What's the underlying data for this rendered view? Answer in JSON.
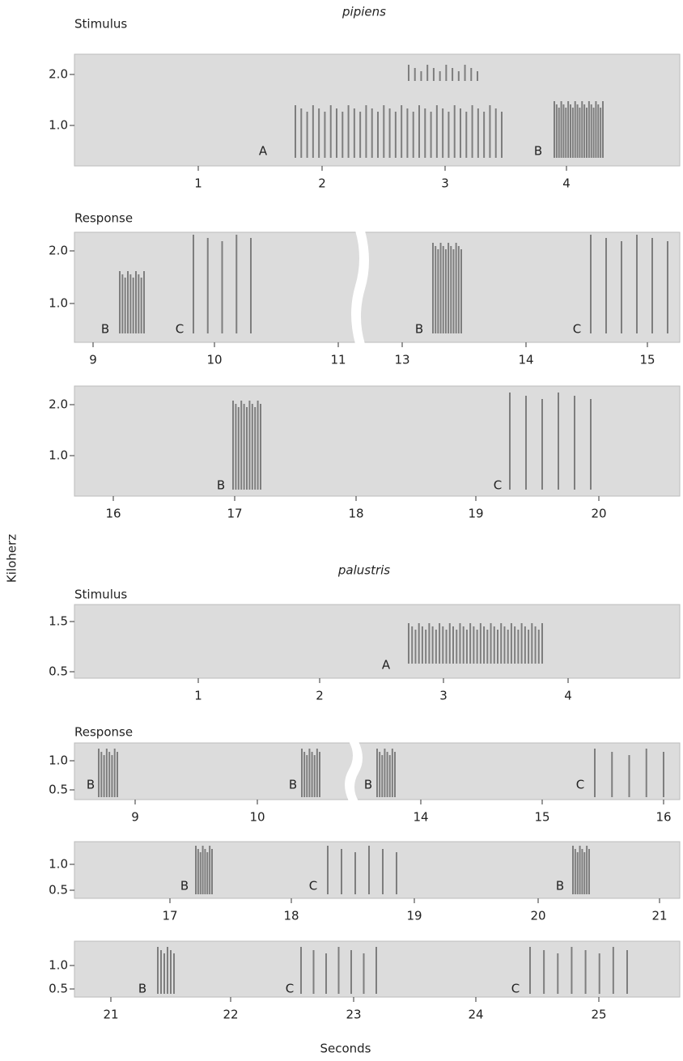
{
  "y_axis_label": "Kiloherz",
  "x_axis_label": "Seconds",
  "sections": [
    {
      "title": "pipiens",
      "panels": [
        {
          "label": "Stimulus",
          "yticks": [
            "2.0",
            "1.0"
          ],
          "xticks": [
            "1",
            "2",
            "3",
            "4"
          ],
          "markers": [
            "A",
            "B"
          ]
        },
        {
          "label": "Response",
          "yticks": [
            "2.0",
            "1.0"
          ],
          "xticks": [
            "9",
            "10",
            "11",
            "13",
            "14",
            "15"
          ],
          "markers": [
            "B",
            "C",
            "B",
            "C"
          ]
        },
        {
          "yticks": [
            "2.0",
            "1.0"
          ],
          "xticks": [
            "16",
            "17",
            "18",
            "19",
            "20"
          ],
          "markers": [
            "B",
            "C"
          ]
        }
      ]
    },
    {
      "title": "palustris",
      "panels": [
        {
          "label": "Stimulus",
          "yticks": [
            "1.5",
            "0.5"
          ],
          "xticks": [
            "1",
            "2",
            "3",
            "4"
          ],
          "markers": [
            "A"
          ]
        },
        {
          "label": "Response",
          "yticks": [
            "1.0",
            "0.5"
          ],
          "xticks": [
            "9",
            "10",
            "14",
            "15",
            "16"
          ],
          "markers": [
            "B",
            "B",
            "B",
            "C"
          ]
        },
        {
          "yticks": [
            "1.0",
            "0.5"
          ],
          "xticks": [
            "17",
            "18",
            "19",
            "20",
            "21"
          ],
          "markers": [
            "B",
            "C",
            "B"
          ]
        },
        {
          "yticks": [
            "1.0",
            "0.5"
          ],
          "xticks": [
            "21",
            "22",
            "23",
            "24",
            "25"
          ],
          "markers": [
            "B",
            "C",
            "C"
          ]
        }
      ]
    }
  ]
}
